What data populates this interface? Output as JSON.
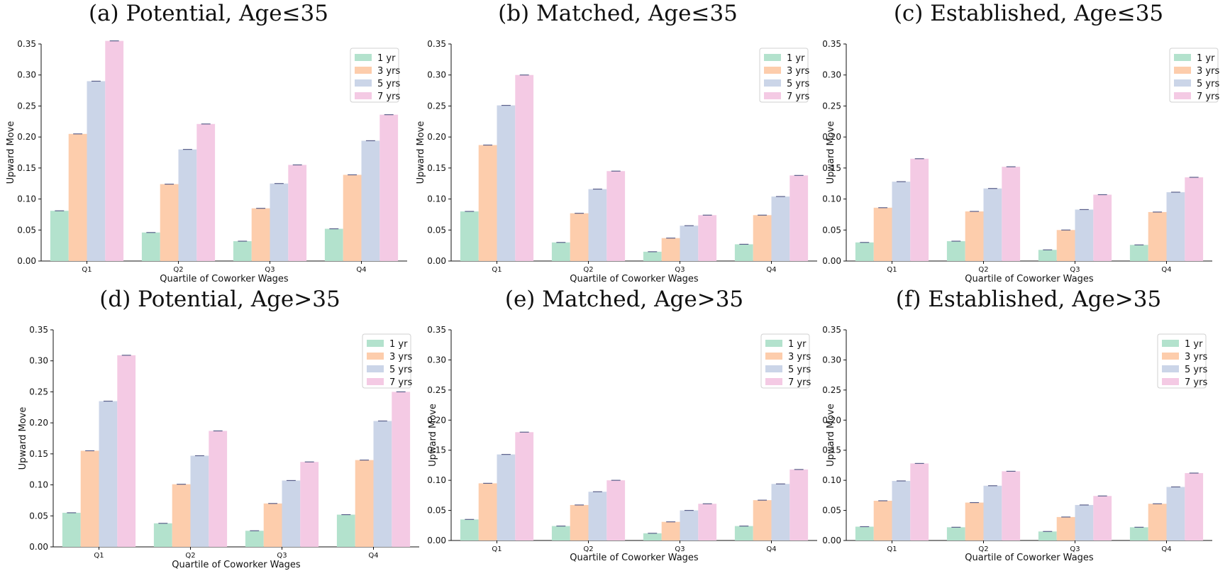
{
  "chart_data": [
    {
      "type": "bar",
      "title": "(a) Potential, Age≤35",
      "xlabel": "Quartile of Coworker Wages",
      "ylabel": "Upward Move",
      "ylim": [
        0,
        0.35
      ],
      "yticks": [
        "0.00",
        "0.05",
        "0.10",
        "0.15",
        "0.20",
        "0.25",
        "0.30",
        "0.35"
      ],
      "categories": [
        "Q1",
        "Q2",
        "Q3",
        "Q4"
      ],
      "legend_position": "top-right",
      "series": [
        {
          "name": "1 yr",
          "values": [
            0.081,
            0.046,
            0.032,
            0.052
          ]
        },
        {
          "name": "3 yrs",
          "values": [
            0.205,
            0.124,
            0.085,
            0.139
          ]
        },
        {
          "name": "5 yrs",
          "values": [
            0.29,
            0.18,
            0.125,
            0.194
          ]
        },
        {
          "name": "7 yrs",
          "values": [
            0.355,
            0.221,
            0.155,
            0.236
          ]
        }
      ]
    },
    {
      "type": "bar",
      "title": "(b) Matched, Age≤35",
      "xlabel": "Quartile of Coworker Wages",
      "ylabel": "Upward Move",
      "ylim": [
        0,
        0.35
      ],
      "yticks": [
        "0.00",
        "0.05",
        "0.10",
        "0.15",
        "0.20",
        "0.25",
        "0.30",
        "0.35"
      ],
      "categories": [
        "Q1",
        "Q2",
        "Q3",
        "Q4"
      ],
      "legend_position": "top-right",
      "series": [
        {
          "name": "1 yr",
          "values": [
            0.08,
            0.03,
            0.015,
            0.027
          ]
        },
        {
          "name": "3 yrs",
          "values": [
            0.187,
            0.077,
            0.037,
            0.074
          ]
        },
        {
          "name": "5 yrs",
          "values": [
            0.251,
            0.116,
            0.057,
            0.104
          ]
        },
        {
          "name": "7 yrs",
          "values": [
            0.3,
            0.145,
            0.074,
            0.138
          ]
        }
      ]
    },
    {
      "type": "bar",
      "title": "(c) Established, Age≤35",
      "xlabel": "Quartile of Coworker Wages",
      "ylabel": "Upward Move",
      "ylim": [
        0,
        0.35
      ],
      "yticks": [
        "0.00",
        "0.05",
        "0.10",
        "0.15",
        "0.20",
        "0.25",
        "0.30",
        "0.35"
      ],
      "categories": [
        "Q1",
        "Q2",
        "Q3",
        "Q4"
      ],
      "legend_position": "top-right",
      "series": [
        {
          "name": "1 yr",
          "values": [
            0.03,
            0.032,
            0.018,
            0.026
          ]
        },
        {
          "name": "3 yrs",
          "values": [
            0.086,
            0.08,
            0.05,
            0.079
          ]
        },
        {
          "name": "5 yrs",
          "values": [
            0.128,
            0.117,
            0.083,
            0.111
          ]
        },
        {
          "name": "7 yrs",
          "values": [
            0.165,
            0.152,
            0.107,
            0.135
          ]
        }
      ]
    },
    {
      "type": "bar",
      "title": "(d) Potential, Age>35",
      "xlabel": "Quartile of Coworker Wages",
      "ylabel": "Upward Move",
      "ylim": [
        0,
        0.35
      ],
      "yticks": [
        "0.00",
        "0.05",
        "0.10",
        "0.15",
        "0.20",
        "0.25",
        "0.30",
        "0.35"
      ],
      "categories": [
        "Q1",
        "Q2",
        "Q3",
        "Q4"
      ],
      "legend_position": "top-right",
      "series": [
        {
          "name": "1 yr",
          "values": [
            0.055,
            0.038,
            0.026,
            0.052
          ]
        },
        {
          "name": "3 yrs",
          "values": [
            0.155,
            0.101,
            0.07,
            0.14
          ]
        },
        {
          "name": "5 yrs",
          "values": [
            0.235,
            0.147,
            0.107,
            0.203
          ]
        },
        {
          "name": "7 yrs",
          "values": [
            0.309,
            0.187,
            0.137,
            0.25
          ]
        }
      ]
    },
    {
      "type": "bar",
      "title": "(e) Matched, Age>35",
      "xlabel": "Quartile of Coworker Wages",
      "ylabel": "Upward Move",
      "ylim": [
        0,
        0.35
      ],
      "yticks": [
        "0.00",
        "0.05",
        "0.10",
        "0.15",
        "0.20",
        "0.25",
        "0.30",
        "0.35"
      ],
      "categories": [
        "Q1",
        "Q2",
        "Q3",
        "Q4"
      ],
      "legend_position": "top-right",
      "series": [
        {
          "name": "1 yr",
          "values": [
            0.035,
            0.024,
            0.012,
            0.024
          ]
        },
        {
          "name": "3 yrs",
          "values": [
            0.095,
            0.059,
            0.031,
            0.067
          ]
        },
        {
          "name": "5 yrs",
          "values": [
            0.143,
            0.081,
            0.05,
            0.094
          ]
        },
        {
          "name": "7 yrs",
          "values": [
            0.18,
            0.1,
            0.061,
            0.118
          ]
        }
      ]
    },
    {
      "type": "bar",
      "title": "(f) Established, Age>35",
      "xlabel": "Quartile of Coworker Wages",
      "ylabel": "Upward Move",
      "ylim": [
        0,
        0.35
      ],
      "yticks": [
        "0.00",
        "0.05",
        "0.10",
        "0.15",
        "0.20",
        "0.25",
        "0.30",
        "0.35"
      ],
      "categories": [
        "Q1",
        "Q2",
        "Q3",
        "Q4"
      ],
      "legend_position": "top-right",
      "series": [
        {
          "name": "1 yr",
          "values": [
            0.023,
            0.022,
            0.015,
            0.022
          ]
        },
        {
          "name": "3 yrs",
          "values": [
            0.066,
            0.063,
            0.039,
            0.061
          ]
        },
        {
          "name": "5 yrs",
          "values": [
            0.099,
            0.091,
            0.059,
            0.089
          ]
        },
        {
          "name": "7 yrs",
          "values": [
            0.128,
            0.115,
            0.074,
            0.112
          ]
        }
      ]
    }
  ],
  "colors": {
    "series": [
      "#b3e2cd",
      "#fdcdac",
      "#cbd5e8",
      "#f4cae4"
    ],
    "error_bar": "#5a5f8a",
    "axis": "#111111"
  }
}
